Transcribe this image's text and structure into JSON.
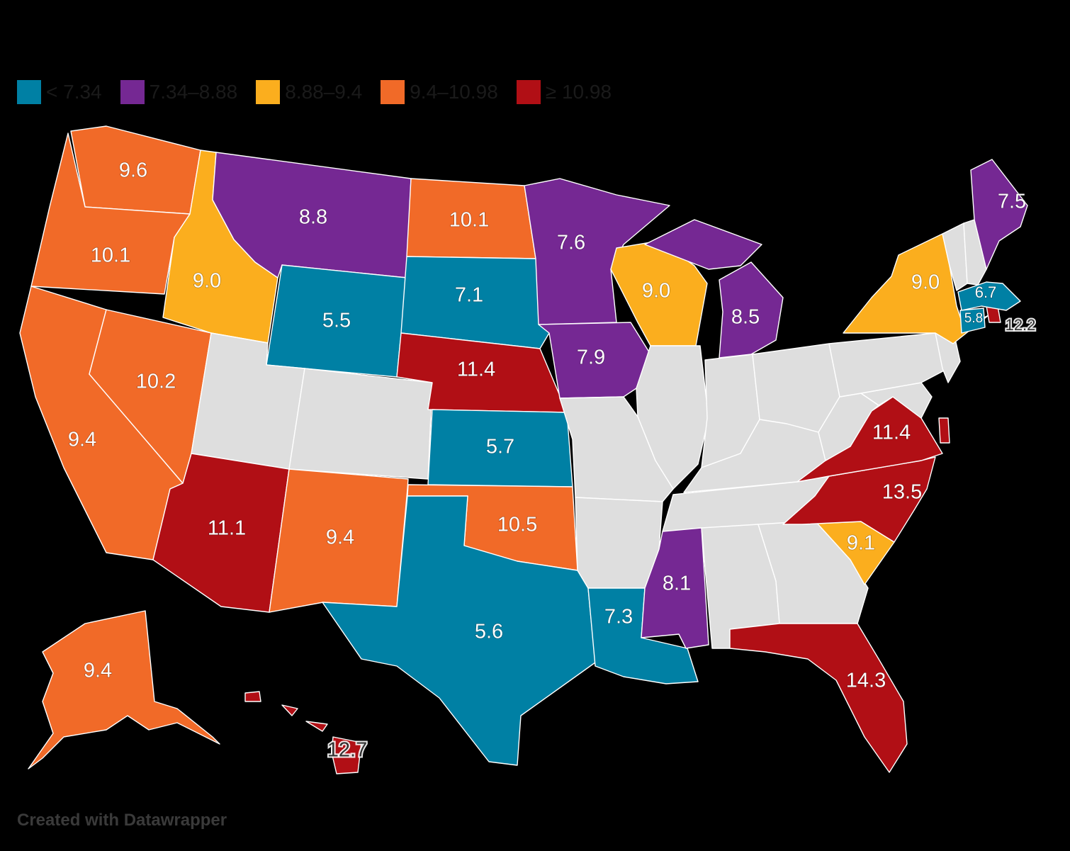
{
  "legend": [
    {
      "label": "< 7.34",
      "color": "#0080a4"
    },
    {
      "label": "7.34–8.88",
      "color": "#752893"
    },
    {
      "label": "8.88–9.4",
      "color": "#fbae1e"
    },
    {
      "label": "9.4–10.98",
      "color": "#f16a28"
    },
    {
      "label": "≥ 10.98",
      "color": "#b10f15"
    }
  ],
  "no_data_color": "#dedede",
  "states": [
    {
      "name": "Washington",
      "value": "9.6",
      "bin": 3
    },
    {
      "name": "Oregon",
      "value": "10.1",
      "bin": 3
    },
    {
      "name": "California",
      "value": "9.4",
      "bin": 3
    },
    {
      "name": "Nevada",
      "value": "10.2",
      "bin": 3
    },
    {
      "name": "Idaho",
      "value": "9.0",
      "bin": 2
    },
    {
      "name": "Montana",
      "value": "8.8",
      "bin": 1
    },
    {
      "name": "Wyoming",
      "value": "5.5",
      "bin": 0
    },
    {
      "name": "Utah",
      "value": null,
      "bin": null
    },
    {
      "name": "Colorado",
      "value": null,
      "bin": null
    },
    {
      "name": "Arizona",
      "value": "11.1",
      "bin": 4
    },
    {
      "name": "New Mexico",
      "value": "9.4",
      "bin": 3
    },
    {
      "name": "North Dakota",
      "value": "10.1",
      "bin": 3
    },
    {
      "name": "South Dakota",
      "value": "7.1",
      "bin": 0
    },
    {
      "name": "Nebraska",
      "value": "11.4",
      "bin": 4
    },
    {
      "name": "Kansas",
      "value": "5.7",
      "bin": 0
    },
    {
      "name": "Oklahoma",
      "value": "10.5",
      "bin": 3
    },
    {
      "name": "Texas",
      "value": "5.6",
      "bin": 0
    },
    {
      "name": "Minnesota",
      "value": "7.6",
      "bin": 1
    },
    {
      "name": "Iowa",
      "value": "7.9",
      "bin": 1
    },
    {
      "name": "Missouri",
      "value": null,
      "bin": null
    },
    {
      "name": "Arkansas",
      "value": null,
      "bin": null
    },
    {
      "name": "Louisiana",
      "value": "7.3",
      "bin": 0
    },
    {
      "name": "Wisconsin",
      "value": "9.0",
      "bin": 2
    },
    {
      "name": "Illinois",
      "value": null,
      "bin": null
    },
    {
      "name": "Michigan",
      "value": "8.5",
      "bin": 1
    },
    {
      "name": "Indiana",
      "value": null,
      "bin": null
    },
    {
      "name": "Ohio",
      "value": null,
      "bin": null
    },
    {
      "name": "Kentucky",
      "value": null,
      "bin": null
    },
    {
      "name": "Tennessee",
      "value": null,
      "bin": null
    },
    {
      "name": "Mississippi",
      "value": "8.1",
      "bin": 1
    },
    {
      "name": "Alabama",
      "value": null,
      "bin": null
    },
    {
      "name": "Georgia",
      "value": null,
      "bin": null
    },
    {
      "name": "Florida",
      "value": "14.3",
      "bin": 4
    },
    {
      "name": "South Carolina",
      "value": "9.1",
      "bin": 2
    },
    {
      "name": "North Carolina",
      "value": "13.5",
      "bin": 4
    },
    {
      "name": "Virginia",
      "value": "11.4",
      "bin": 4
    },
    {
      "name": "West Virginia",
      "value": null,
      "bin": null
    },
    {
      "name": "Maryland",
      "value": null,
      "bin": null
    },
    {
      "name": "Delaware",
      "value": "",
      "bin": 4
    },
    {
      "name": "Pennsylvania",
      "value": null,
      "bin": null
    },
    {
      "name": "New Jersey",
      "value": null,
      "bin": null
    },
    {
      "name": "New York",
      "value": "9.0",
      "bin": 2
    },
    {
      "name": "Connecticut",
      "value": "5.8",
      "bin": 0
    },
    {
      "name": "Rhode Island",
      "value": "12.2",
      "bin": 4
    },
    {
      "name": "Massachusetts",
      "value": "6.7",
      "bin": 0
    },
    {
      "name": "Vermont",
      "value": null,
      "bin": null
    },
    {
      "name": "New Hampshire",
      "value": null,
      "bin": null
    },
    {
      "name": "Maine",
      "value": "7.5",
      "bin": 1
    },
    {
      "name": "Alaska",
      "value": "9.4",
      "bin": 3
    },
    {
      "name": "Hawaii",
      "value": "12.7",
      "bin": 4
    }
  ],
  "credit": "Created with Datawrapper"
}
